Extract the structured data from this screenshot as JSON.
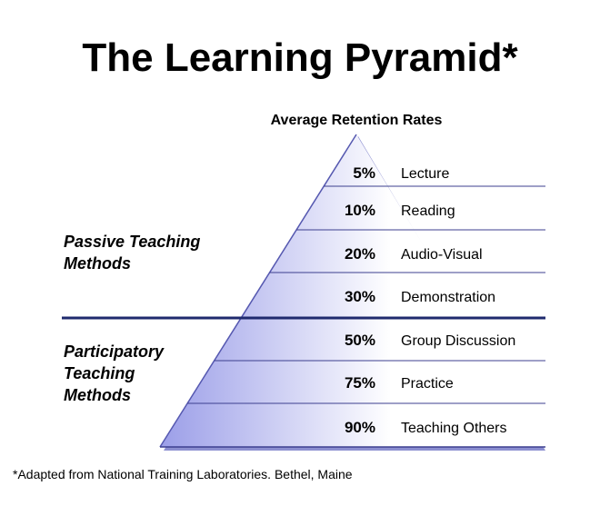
{
  "title": "The Learning Pyramid*",
  "subtitle": "Average Retention Rates",
  "groups": {
    "passive": "Passive Teaching\nMethods",
    "participatory": "Participatory\nTeaching\nMethods"
  },
  "levels": [
    {
      "percent": "5%",
      "label": "Lecture"
    },
    {
      "percent": "10%",
      "label": "Reading"
    },
    {
      "percent": "20%",
      "label": "Audio-Visual"
    },
    {
      "percent": "30%",
      "label": "Demonstration"
    },
    {
      "percent": "50%",
      "label": "Group Discussion"
    },
    {
      "percent": "75%",
      "label": "Practice"
    },
    {
      "percent": "90%",
      "label": "Teaching Others"
    }
  ],
  "footnote": "*Adapted from National Training Laboratories. Bethel, Maine",
  "colors": {
    "pyramid_fill_dark": "#9b9ee8",
    "pyramid_fill_light": "#ffffff",
    "divider": "#1f2a6e",
    "row_lines": "#3c3f8f"
  }
}
